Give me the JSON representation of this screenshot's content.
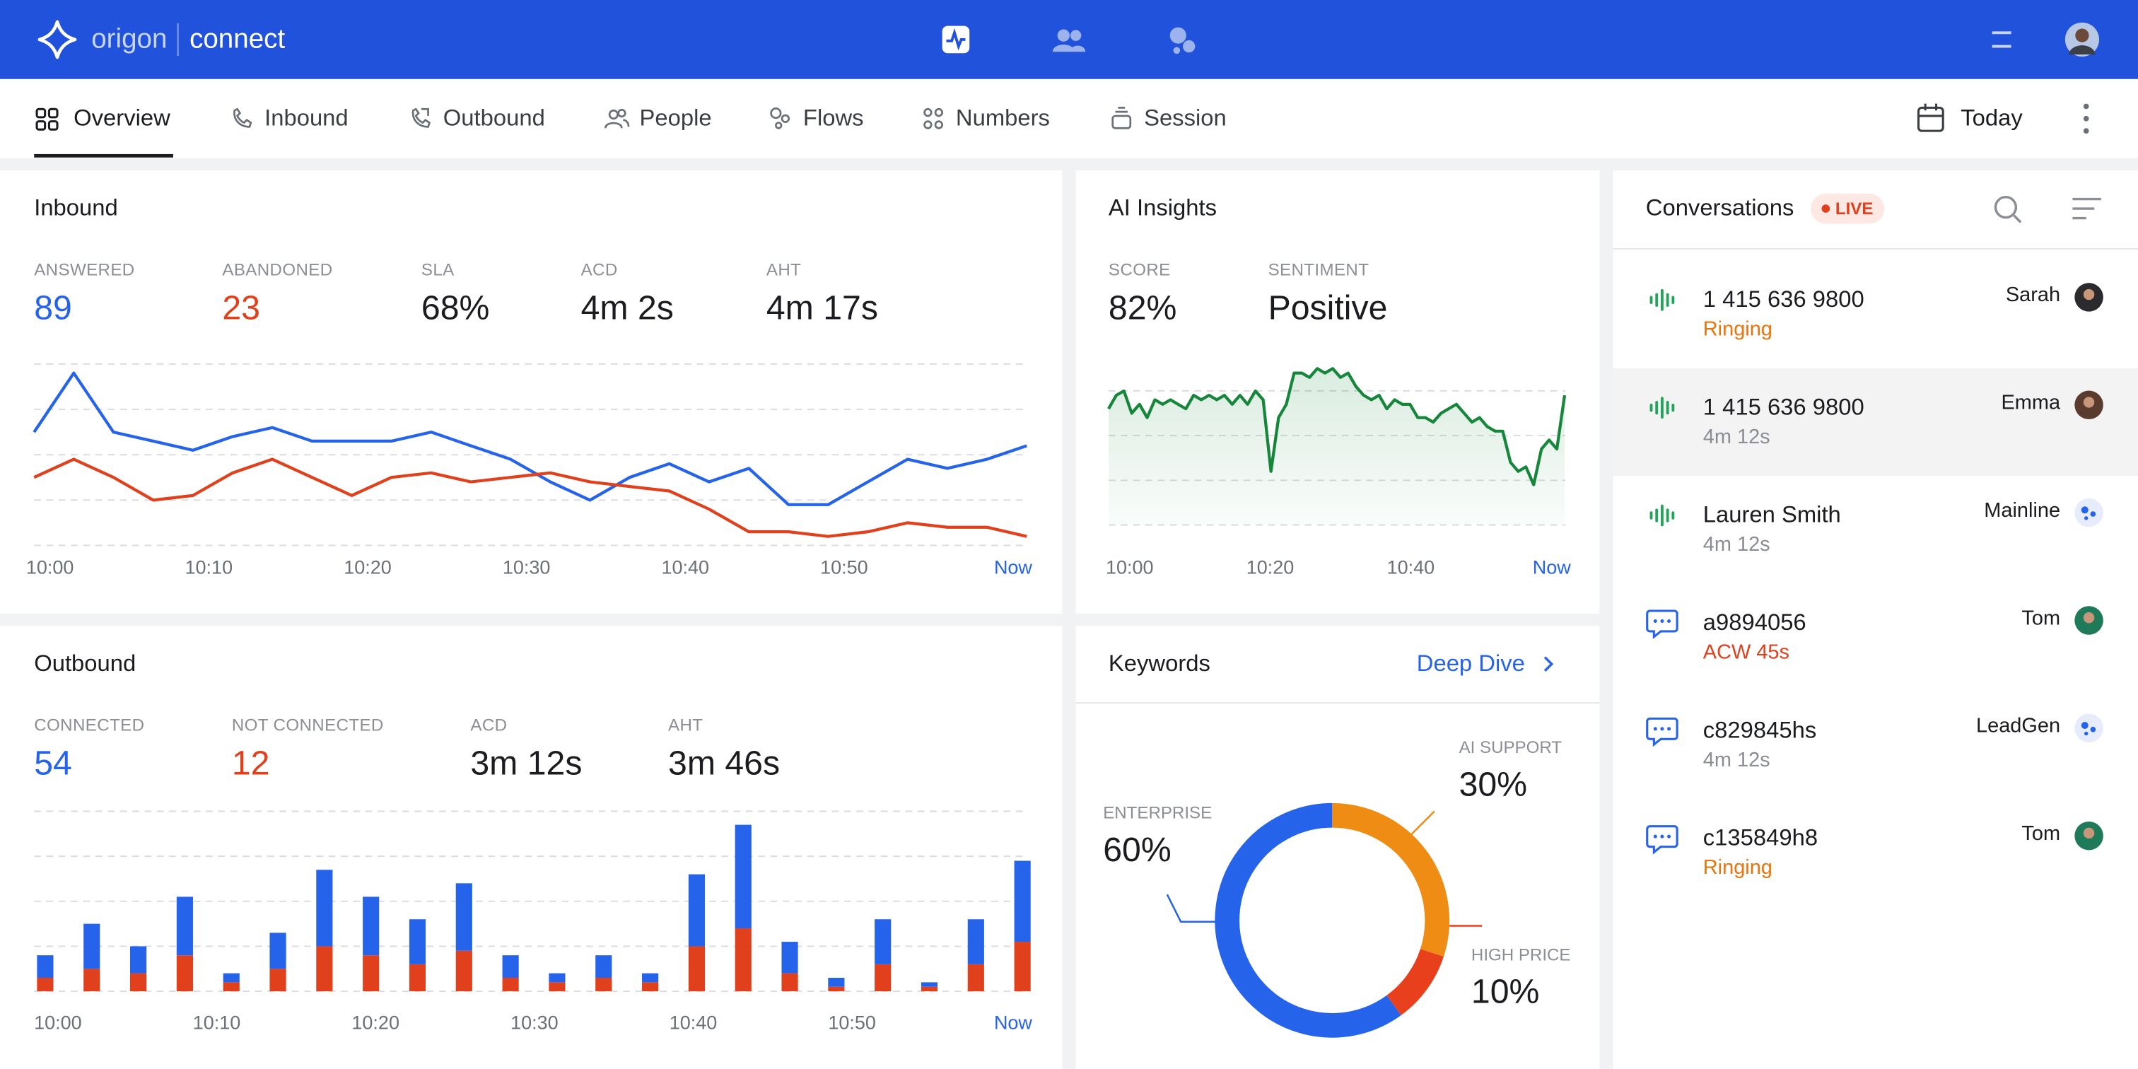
{
  "header": {
    "brand": "origon",
    "product": "connect"
  },
  "tabs": [
    "Overview",
    "Inbound",
    "Outbound",
    "People",
    "Flows",
    "Numbers",
    "Session"
  ],
  "date_filter": "Today",
  "inbound": {
    "title": "Inbound",
    "stats": [
      {
        "label": "ANSWERED",
        "value": "89",
        "color": "#2563eb"
      },
      {
        "label": "ABANDONED",
        "value": "23",
        "color": "#e0401c"
      },
      {
        "label": "SLA",
        "value": "68%"
      },
      {
        "label": "ACD",
        "value": "4m 2s"
      },
      {
        "label": "AHT",
        "value": "4m 17s"
      }
    ],
    "chart": {
      "type": "line",
      "x": [
        -1,
        1.5,
        4,
        6.5,
        9,
        11.5,
        14,
        16.5,
        19,
        21.5,
        24,
        26.5,
        29,
        31.5,
        34,
        36.5,
        39,
        41.5,
        44,
        46.5,
        49,
        51.5,
        54,
        56.5,
        59,
        61.5
      ],
      "xlim": [
        -1,
        61.5
      ],
      "xticks": [
        {
          "value": 0,
          "label": "10:00"
        },
        {
          "value": 10,
          "label": "10:10"
        },
        {
          "value": 20,
          "label": "10:20"
        },
        {
          "value": 30,
          "label": "10:30"
        },
        {
          "value": 40,
          "label": "10:40"
        },
        {
          "value": 50,
          "label": "10:50"
        },
        {
          "value": 60,
          "label": "Now"
        }
      ],
      "ylim": [
        0,
        4
      ],
      "yticks": [
        0,
        1,
        2,
        3,
        4
      ],
      "grid": true,
      "series": [
        {
          "color": "#2563eb",
          "values": [
            2.5,
            3.8,
            2.5,
            2.3,
            2.1,
            2.4,
            2.6,
            2.3,
            2.3,
            2.3,
            2.5,
            2.2,
            1.9,
            1.4,
            1.0,
            1.5,
            1.8,
            1.4,
            1.7,
            0.9,
            0.9,
            1.4,
            1.9,
            1.7,
            1.9,
            2.2
          ]
        },
        {
          "color": "#e0401c",
          "values": [
            1.5,
            1.9,
            1.5,
            1.0,
            1.1,
            1.6,
            1.9,
            1.5,
            1.1,
            1.5,
            1.6,
            1.4,
            1.5,
            1.6,
            1.4,
            1.3,
            1.2,
            0.8,
            0.3,
            0.3,
            0.2,
            0.3,
            0.5,
            0.4,
            0.4,
            0.2
          ]
        }
      ]
    }
  },
  "ai_insights": {
    "title": "AI Insights",
    "stats": [
      {
        "label": "SCORE",
        "value": "82%"
      },
      {
        "label": "SENTIMENT",
        "value": "Positive"
      }
    ],
    "chart": {
      "type": "area",
      "x": [
        -3,
        -1.9,
        -0.8,
        0.3,
        1.4,
        2.5,
        3.6,
        4.7,
        5.8,
        6.9,
        8,
        9.1,
        10.2,
        11.3,
        12.4,
        13.5,
        14.6,
        15.7,
        16.8,
        17.9,
        19,
        20.1,
        21.2,
        22.3,
        23.4,
        24.5,
        25.6,
        26.7,
        27.8,
        28.9,
        30,
        31.1,
        32.2,
        33.3,
        34.4,
        35.5,
        36.6,
        37.7,
        38.8,
        39.9,
        41,
        42.1,
        43.2,
        44.3,
        45.4,
        46.5,
        47.6,
        48.7,
        49.8,
        50.9,
        52,
        53.1,
        54.2,
        55.3,
        56.4,
        57.5,
        58.6,
        59.7,
        60.8,
        61.9
      ],
      "xlim": [
        -3,
        62
      ],
      "xticks": [
        {
          "value": 0,
          "label": "10:00"
        },
        {
          "value": 20,
          "label": "10:20"
        },
        {
          "value": 40,
          "label": "10:40"
        },
        {
          "value": 60,
          "label": "Now"
        }
      ],
      "ylim": [
        0,
        3.6
      ],
      "yticks": [
        0,
        1,
        2,
        3
      ],
      "grid": true,
      "series": [
        {
          "color": "#16873a",
          "values": [
            2.6,
            2.9,
            3.0,
            2.5,
            2.7,
            2.4,
            2.8,
            2.7,
            2.8,
            2.7,
            2.6,
            2.9,
            2.8,
            2.9,
            2.8,
            2.9,
            2.7,
            2.9,
            2.7,
            3.0,
            2.8,
            1.2,
            2.4,
            2.7,
            3.4,
            3.4,
            3.3,
            3.5,
            3.4,
            3.5,
            3.3,
            3.4,
            3.1,
            2.9,
            2.8,
            2.9,
            2.6,
            2.8,
            2.7,
            2.7,
            2.4,
            2.4,
            2.3,
            2.5,
            2.6,
            2.7,
            2.5,
            2.3,
            2.4,
            2.2,
            2.1,
            2.1,
            1.4,
            1.2,
            1.3,
            0.9,
            1.7,
            1.9,
            1.7,
            2.9
          ]
        }
      ]
    }
  },
  "outbound": {
    "title": "Outbound",
    "stats": [
      {
        "label": "CONNECTED",
        "value": "54",
        "color": "#2563eb"
      },
      {
        "label": "NOT CONNECTED",
        "value": "12",
        "color": "#e0401c"
      },
      {
        "label": "ACD",
        "value": "3m 12s"
      },
      {
        "label": "AHT",
        "value": "3m 46s"
      }
    ],
    "chart": {
      "type": "stacked-bar",
      "x": [
        -0.8,
        2.13,
        5.06,
        7.99,
        10.92,
        13.85,
        16.78,
        19.71,
        22.64,
        25.57,
        28.5,
        31.43,
        34.36,
        37.29,
        40.22,
        43.15,
        46.08,
        49.01,
        51.94,
        54.87,
        57.8,
        60.73
      ],
      "xlim": [
        -1.5,
        61
      ],
      "xticks": [
        {
          "value": 0,
          "label": "10:00"
        },
        {
          "value": 10,
          "label": "10:10"
        },
        {
          "value": 20,
          "label": "10:20"
        },
        {
          "value": 30,
          "label": "10:30"
        },
        {
          "value": 40,
          "label": "10:40"
        },
        {
          "value": 50,
          "label": "10:50"
        },
        {
          "value": 60,
          "label": "Now"
        }
      ],
      "ylim": [
        0,
        4
      ],
      "yticks": [
        0,
        1,
        2,
        3,
        4
      ],
      "grid": true,
      "series": [
        {
          "color": "#e0401c",
          "values": [
            0.3,
            0.5,
            0.4,
            0.8,
            0.2,
            0.5,
            1.0,
            0.8,
            0.6,
            0.9,
            0.3,
            0.2,
            0.3,
            0.2,
            1.0,
            1.4,
            0.4,
            0.1,
            0.6,
            0.1,
            0.6,
            1.1
          ]
        },
        {
          "color": "#2563eb",
          "values": [
            0.5,
            1.0,
            0.6,
            1.3,
            0.2,
            0.8,
            1.7,
            1.3,
            1.0,
            1.5,
            0.5,
            0.2,
            0.5,
            0.2,
            1.6,
            2.3,
            0.7,
            0.2,
            1.0,
            0.1,
            1.0,
            1.8
          ]
        }
      ]
    }
  },
  "keywords": {
    "title": "Keywords",
    "action": "Deep Dive",
    "chart": {
      "type": "donut",
      "categories": [
        "AI SUPPORT",
        "HIGH PRICE",
        "ENTERPRISE"
      ],
      "values": [
        30,
        10,
        60
      ],
      "value_labels": [
        "30%",
        "10%",
        "60%"
      ],
      "colors": [
        "#ee8c14",
        "#e8401c",
        "#2563eb"
      ]
    }
  },
  "conversations": {
    "title": "Conversations",
    "badge": "LIVE",
    "items": [
      {
        "number": "1 415 636 9800",
        "status": "Ringing",
        "status_color": "#e8740c",
        "agent": "Sarah"
      },
      {
        "number": "1 415 636 9800",
        "status": "4m 12s",
        "status_color": "#8a8d93",
        "agent": "Emma"
      },
      {
        "number": "Lauren Smith",
        "status": "4m 12s",
        "status_color": "#8a8d93",
        "agent": "Mainline"
      },
      {
        "number": "a9894056",
        "status": "ACW 45s",
        "status_color": "#e0401c",
        "agent": "Tom"
      },
      {
        "number": "c829845hs",
        "status": "4m 12s",
        "status_color": "#8a8d93",
        "agent": "LeadGen"
      },
      {
        "number": "c135849h8",
        "status": "Ringing",
        "status_color": "#e8740c",
        "agent": "Tom"
      }
    ]
  }
}
